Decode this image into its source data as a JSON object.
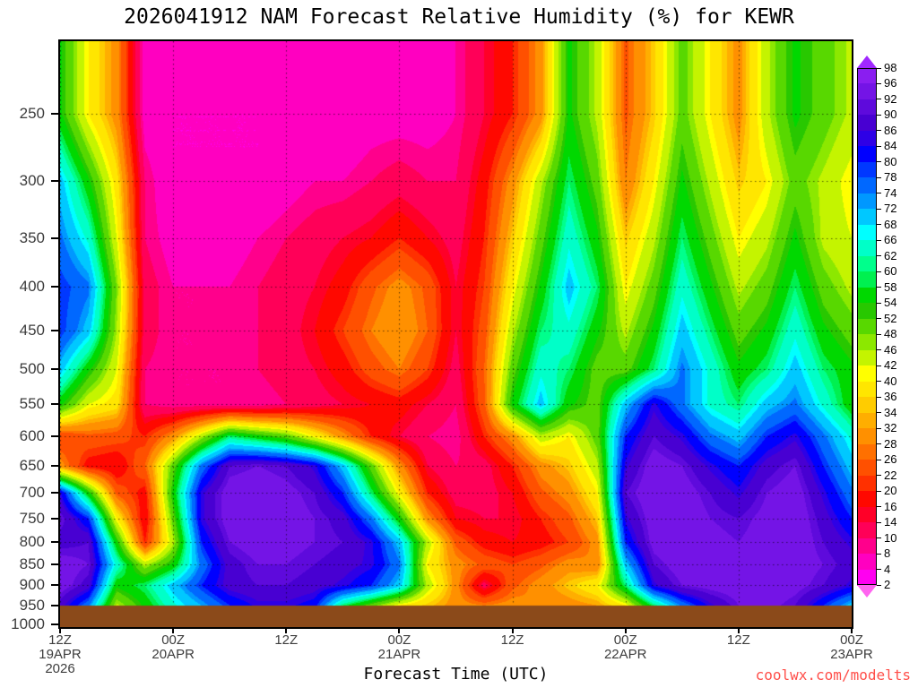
{
  "page": {
    "title": "2026041912 NAM Forecast Relative Humidity (%) for KEWR",
    "x_axis_title": "Forecast Time (UTC)",
    "watermark": "coolwx.com/modelts"
  },
  "chart_data": {
    "type": "heatmap",
    "title": "2026041912 NAM Forecast Relative Humidity (%) for KEWR",
    "xlabel": "Forecast Time (UTC)",
    "ylabel": "",
    "x_unit": "forecast hour (UTC)",
    "x_range": [
      0,
      84
    ],
    "x_ticks": [
      {
        "hour": 0,
        "label": "12Z",
        "date": "19APR",
        "year": "2026"
      },
      {
        "hour": 12,
        "label": "00Z",
        "date": "20APR"
      },
      {
        "hour": 24,
        "label": "12Z"
      },
      {
        "hour": 36,
        "label": "00Z",
        "date": "21APR"
      },
      {
        "hour": 48,
        "label": "12Z"
      },
      {
        "hour": 60,
        "label": "00Z",
        "date": "22APR"
      },
      {
        "hour": 72,
        "label": "12Z"
      },
      {
        "hour": 84,
        "label": "00Z",
        "date": "23APR"
      }
    ],
    "y_unit": "hPa",
    "y_scale": "log",
    "y_plot_range": [
      205,
      1008
    ],
    "y_ticks": [
      250,
      300,
      350,
      400,
      450,
      500,
      550,
      600,
      650,
      700,
      750,
      800,
      850,
      900,
      950,
      1000
    ],
    "grid_on": true,
    "surface_band_color": "#8B4A1A",
    "grid_hours": [
      0,
      3,
      6,
      9,
      12,
      15,
      18,
      21,
      24,
      27,
      30,
      33,
      36,
      39,
      42,
      45,
      48,
      51,
      54,
      57,
      60,
      63,
      66,
      69,
      72,
      75,
      78,
      81,
      84
    ],
    "grid_pressures": [
      250,
      300,
      350,
      400,
      450,
      500,
      550,
      600,
      650,
      700,
      750,
      800,
      850,
      900,
      950,
      1000
    ],
    "values": [
      [
        55,
        40,
        30,
        6,
        4,
        4,
        4,
        4,
        4,
        4,
        4,
        6,
        6,
        6,
        8,
        14,
        20,
        30,
        55,
        45,
        25,
        35,
        50,
        40,
        30,
        45,
        55,
        50,
        45
      ],
      [
        70,
        55,
        38,
        10,
        4,
        4,
        4,
        4,
        6,
        8,
        8,
        10,
        12,
        10,
        10,
        18,
        30,
        45,
        60,
        50,
        28,
        40,
        55,
        45,
        35,
        40,
        50,
        45,
        40
      ],
      [
        75,
        65,
        42,
        10,
        6,
        6,
        6,
        8,
        10,
        12,
        14,
        16,
        20,
        16,
        12,
        20,
        35,
        50,
        65,
        55,
        35,
        45,
        60,
        50,
        40,
        45,
        55,
        45,
        42
      ],
      [
        80,
        75,
        48,
        12,
        8,
        8,
        8,
        10,
        12,
        14,
        18,
        25,
        30,
        25,
        14,
        22,
        40,
        55,
        70,
        60,
        40,
        50,
        65,
        55,
        45,
        50,
        60,
        50,
        45
      ],
      [
        80,
        70,
        46,
        12,
        8,
        8,
        10,
        10,
        12,
        16,
        22,
        28,
        32,
        26,
        14,
        24,
        45,
        60,
        65,
        55,
        45,
        55,
        70,
        60,
        50,
        55,
        65,
        55,
        50
      ],
      [
        70,
        55,
        42,
        10,
        8,
        8,
        8,
        10,
        12,
        14,
        18,
        24,
        28,
        22,
        12,
        26,
        50,
        65,
        60,
        50,
        50,
        60,
        75,
        65,
        55,
        60,
        70,
        60,
        55
      ],
      [
        55,
        42,
        38,
        10,
        8,
        8,
        8,
        8,
        10,
        12,
        14,
        16,
        18,
        14,
        10,
        25,
        55,
        70,
        55,
        50,
        70,
        85,
        75,
        65,
        60,
        70,
        75,
        65,
        55
      ],
      [
        22,
        25,
        24,
        20,
        30,
        45,
        60,
        55,
        50,
        40,
        30,
        20,
        14,
        10,
        8,
        20,
        30,
        45,
        40,
        50,
        80,
        90,
        85,
        75,
        70,
        80,
        85,
        75,
        65
      ],
      [
        30,
        18,
        16,
        26,
        50,
        75,
        90,
        92,
        90,
        85,
        70,
        50,
        30,
        14,
        10,
        12,
        20,
        30,
        35,
        45,
        85,
        95,
        92,
        85,
        80,
        88,
        92,
        80,
        70
      ],
      [
        85,
        55,
        25,
        18,
        55,
        85,
        95,
        96,
        94,
        90,
        80,
        60,
        40,
        20,
        12,
        12,
        16,
        25,
        30,
        40,
        90,
        96,
        95,
        90,
        85,
        92,
        95,
        85,
        75
      ],
      [
        92,
        80,
        40,
        16,
        50,
        85,
        95,
        96,
        95,
        92,
        88,
        75,
        55,
        30,
        16,
        14,
        14,
        20,
        25,
        35,
        85,
        95,
        96,
        92,
        90,
        94,
        96,
        88,
        80
      ],
      [
        88,
        90,
        55,
        20,
        45,
        80,
        92,
        95,
        94,
        92,
        90,
        85,
        70,
        45,
        25,
        18,
        16,
        18,
        22,
        30,
        80,
        94,
        96,
        94,
        92,
        95,
        96,
        90,
        85
      ],
      [
        95,
        92,
        65,
        45,
        55,
        75,
        88,
        92,
        92,
        90,
        88,
        85,
        75,
        40,
        30,
        25,
        22,
        25,
        30,
        28,
        70,
        90,
        95,
        95,
        94,
        96,
        95,
        92,
        88
      ],
      [
        95,
        88,
        55,
        60,
        70,
        80,
        88,
        90,
        90,
        88,
        85,
        80,
        70,
        45,
        30,
        12,
        25,
        30,
        35,
        40,
        60,
        85,
        92,
        94,
        95,
        96,
        94,
        90,
        85
      ],
      [
        88,
        75,
        45,
        55,
        65,
        72,
        80,
        85,
        85,
        82,
        60,
        50,
        40,
        35,
        30,
        28,
        30,
        28,
        30,
        32,
        40,
        60,
        75,
        85,
        92,
        94,
        90,
        80,
        70
      ],
      [
        55,
        45,
        35,
        40,
        50,
        55,
        60,
        62,
        60,
        55,
        50,
        45,
        38,
        32,
        28,
        26,
        28,
        26,
        28,
        30,
        35,
        45,
        55,
        65,
        70,
        72,
        68,
        60,
        55
      ]
    ],
    "colorbar": {
      "unit": "%",
      "boundaries": [
        98,
        96,
        92,
        90,
        86,
        84,
        80,
        78,
        74,
        72,
        68,
        66,
        62,
        60,
        58,
        54,
        52,
        48,
        46,
        42,
        40,
        36,
        34,
        32,
        28,
        26,
        22,
        20,
        16,
        14,
        10,
        8,
        4,
        2
      ],
      "colors": [
        "#A028FF",
        "#8A1EF0",
        "#7414E6",
        "#5E0ADC",
        "#4800D2",
        "#2E00E6",
        "#0000FF",
        "#0038FF",
        "#0068FF",
        "#0098FF",
        "#00C8FF",
        "#00FFFF",
        "#00FFC8",
        "#00FF8C",
        "#00F050",
        "#00D800",
        "#28C800",
        "#58D800",
        "#8CE800",
        "#C4F400",
        "#FFFF00",
        "#FFE600",
        "#FFCC00",
        "#FFAE00",
        "#FF9000",
        "#FF7000",
        "#FF5000",
        "#FF3000",
        "#FF0800",
        "#FF0028",
        "#FF0058",
        "#FF008C",
        "#FF00C0",
        "#FF00F0",
        "#FF64F0"
      ]
    }
  }
}
